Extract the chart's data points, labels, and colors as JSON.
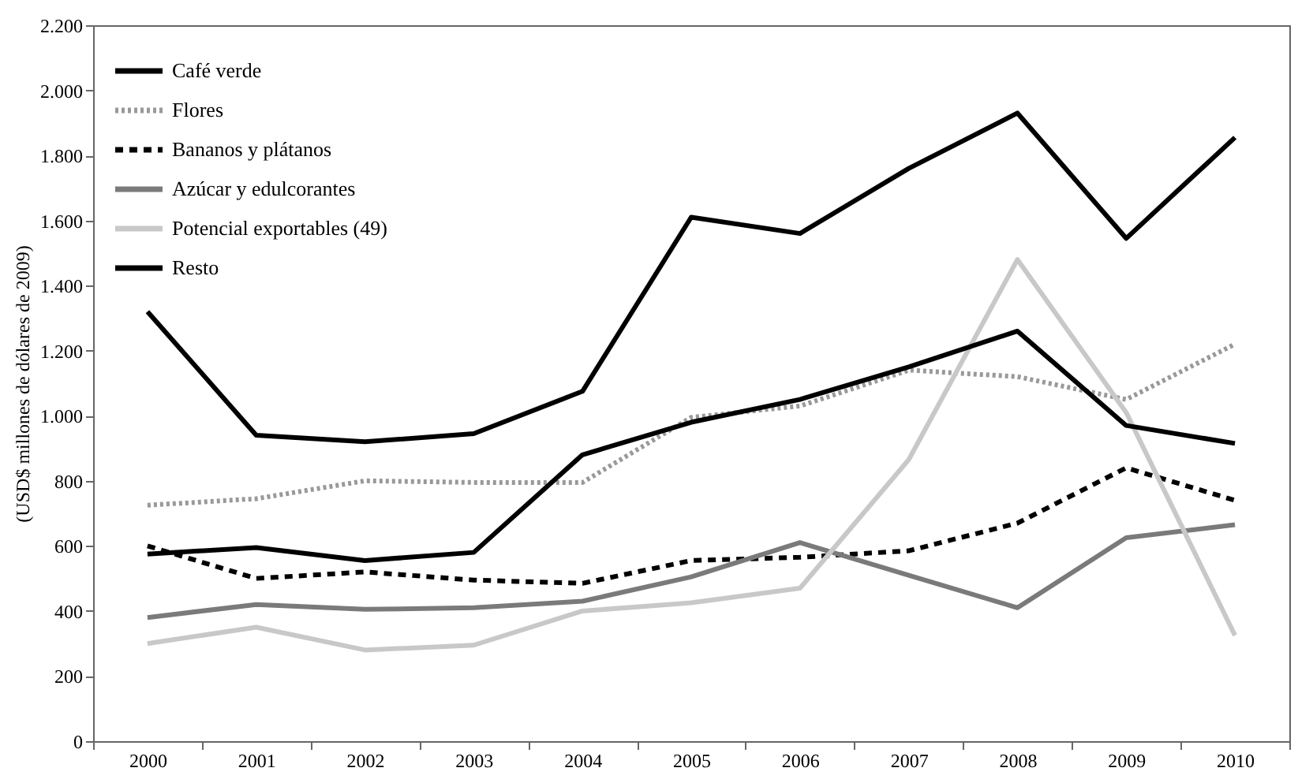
{
  "chart_data": {
    "type": "line",
    "ylabel": "(USD$ millones de dólares de 2009)",
    "categories": [
      "2000",
      "2001",
      "2002",
      "2003",
      "2004",
      "2005",
      "2006",
      "2007",
      "2008",
      "2009",
      "2010"
    ],
    "ylim": [
      0,
      2200
    ],
    "yticks": [
      0,
      200,
      400,
      600,
      800,
      {
        "value": 1000,
        "label": "1.000"
      },
      {
        "value": 1200,
        "label": "1.200"
      },
      {
        "value": 1400,
        "label": "1.400"
      },
      {
        "value": 1600,
        "label": "1.600"
      },
      {
        "value": 1800,
        "label": "1.800"
      },
      {
        "value": 2000,
        "label": "2.000"
      },
      {
        "value": 2200,
        "label": "2.200"
      }
    ],
    "grid": false,
    "legend": "top left",
    "marker": "none",
    "series": [
      {
        "name": "Café verde",
        "color": "#000000",
        "line_style": "solid",
        "values": [
          1320,
          940,
          920,
          945,
          1075,
          1610,
          1560,
          1760,
          1930,
          1545,
          1855
        ]
      },
      {
        "name": "Flores",
        "color": "#999999",
        "line_style": "dotted",
        "values": [
          725,
          745,
          800,
          795,
          795,
          995,
          1030,
          1140,
          1120,
          1050,
          1220
        ]
      },
      {
        "name": "Bananos y plátanos",
        "color": "#000000",
        "line_style": "dashed",
        "values": [
          600,
          500,
          520,
          495,
          485,
          555,
          565,
          585,
          670,
          840,
          740
        ]
      },
      {
        "name": "Azúcar y edulcorantes",
        "color": "#7a7a7a",
        "line_style": "solid",
        "values": [
          380,
          420,
          405,
          410,
          430,
          505,
          610,
          510,
          410,
          625,
          665
        ]
      },
      {
        "name": "Potencial exportables (49)",
        "color": "#c8c8c8",
        "line_style": "solid",
        "values": [
          300,
          350,
          280,
          295,
          400,
          425,
          470,
          865,
          1480,
          1010,
          325
        ]
      },
      {
        "name": "Resto",
        "color": "#000000",
        "line_style": "solid",
        "values": [
          575,
          595,
          555,
          580,
          880,
          980,
          1050,
          1150,
          1260,
          970,
          915
        ]
      }
    ]
  }
}
